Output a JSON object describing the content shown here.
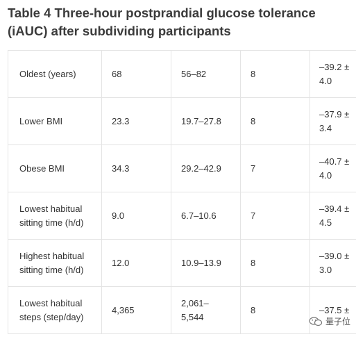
{
  "title": "Table 4  Three-hour postprandial glucose tolerance (iAUC) after subdividing participants",
  "rows": [
    {
      "group": "Oldest (years)",
      "value": "68",
      "range": "56–82",
      "n": "8",
      "iauc_line1": "–39.2 ±",
      "iauc_line2": "4.0"
    },
    {
      "group": "Lower BMI",
      "value": "23.3",
      "range": "19.7–27.8",
      "n": "8",
      "iauc_line1": "–37.9 ±",
      "iauc_line2": "3.4"
    },
    {
      "group": "Obese BMI",
      "value": "34.3",
      "range": "29.2–42.9",
      "n": "7",
      "iauc_line1": "–40.7 ±",
      "iauc_line2": "4.0"
    },
    {
      "group_line1": "Lowest habitual",
      "group_line2": "sitting time (h/d)",
      "value": "9.0",
      "range": "6.7–10.6",
      "n": "7",
      "iauc_line1": "–39.4 ±",
      "iauc_line2": "4.5"
    },
    {
      "group_line1": "Highest habitual",
      "group_line2": "sitting time (h/d)",
      "value": "12.0",
      "range": "10.9–13.9",
      "n": "8",
      "iauc_line1": "–39.0 ±",
      "iauc_line2": "3.0"
    },
    {
      "group_line1": "Lowest habitual",
      "group_line2": "steps (step/day)",
      "value": "4,365",
      "range_line1": "2,061–",
      "range_line2": "5,544",
      "n": "8",
      "iauc_line1": "–37.5 ±",
      "iauc_line2": ""
    }
  ],
  "watermark": {
    "text": "量子位",
    "icon": "wechat-icon"
  }
}
